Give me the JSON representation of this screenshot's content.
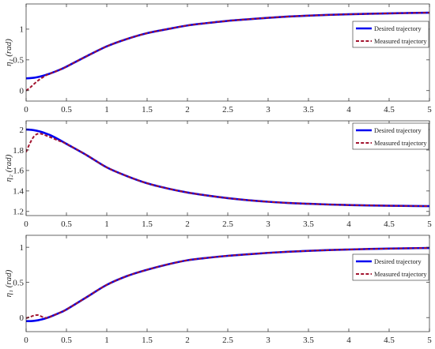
{
  "chart_data": [
    {
      "type": "line",
      "ylabel": "η₁ (rad)",
      "xlim": [
        0,
        5
      ],
      "ylim": [
        -0.17,
        1.41
      ],
      "grid": false,
      "legend": "top-right",
      "xtick_labels": [
        "0",
        "0.5",
        "1",
        "1.5",
        "2",
        "2.5",
        "3",
        "3.5",
        "4",
        "4.5",
        "5"
      ],
      "ytick_labels": [
        "0",
        "0.5",
        "1"
      ],
      "x": [
        0,
        0.05,
        0.1,
        0.15,
        0.2,
        0.25,
        0.3,
        0.4,
        0.5,
        0.75,
        1,
        1.25,
        1.5,
        1.75,
        2,
        2.25,
        2.5,
        2.75,
        3,
        3.25,
        3.5,
        3.75,
        4,
        4.25,
        4.5,
        4.75,
        5
      ],
      "series": [
        {
          "name": "Desired trajectory",
          "color": "#0000f0",
          "line_style": "solid",
          "values": [
            0.2,
            0.203,
            0.21,
            0.222,
            0.238,
            0.258,
            0.28,
            0.33,
            0.39,
            0.56,
            0.72,
            0.84,
            0.935,
            1.0,
            1.06,
            1.1,
            1.135,
            1.16,
            1.185,
            1.205,
            1.22,
            1.232,
            1.242,
            1.25,
            1.257,
            1.263,
            1.268
          ]
        },
        {
          "name": "Measured trajectory",
          "color": "#a2142f",
          "line_style": "dashed",
          "values": [
            0.0,
            0.05,
            0.11,
            0.165,
            0.21,
            0.25,
            0.278,
            0.33,
            0.39,
            0.56,
            0.72,
            0.84,
            0.935,
            1.0,
            1.06,
            1.1,
            1.135,
            1.16,
            1.185,
            1.205,
            1.22,
            1.232,
            1.242,
            1.25,
            1.257,
            1.263,
            1.268
          ]
        }
      ]
    },
    {
      "type": "line",
      "ylabel": "η₂ (rad)",
      "xlim": [
        0,
        5
      ],
      "ylim": [
        1.16,
        2.085
      ],
      "grid": false,
      "legend": "top-right",
      "xtick_labels": [
        "0",
        "0.5",
        "1",
        "1.5",
        "2",
        "2.5",
        "3",
        "3.5",
        "4",
        "4.5",
        "5"
      ],
      "ytick_labels": [
        "1.2",
        "1.4",
        "1.6",
        "1.8",
        "2"
      ],
      "x": [
        0,
        0.05,
        0.1,
        0.15,
        0.2,
        0.25,
        0.3,
        0.4,
        0.5,
        0.75,
        1,
        1.25,
        1.5,
        1.75,
        2,
        2.25,
        2.5,
        2.75,
        3,
        3.25,
        3.5,
        3.75,
        4,
        4.25,
        4.5,
        4.75,
        5
      ],
      "series": [
        {
          "name": "Desired trajectory",
          "color": "#0000f0",
          "line_style": "solid",
          "values": [
            2.0,
            1.998,
            1.993,
            1.985,
            1.974,
            1.96,
            1.945,
            1.905,
            1.86,
            1.75,
            1.63,
            1.545,
            1.475,
            1.425,
            1.385,
            1.355,
            1.33,
            1.31,
            1.295,
            1.283,
            1.275,
            1.268,
            1.263,
            1.259,
            1.256,
            1.254,
            1.252
          ]
        },
        {
          "name": "Measured trajectory",
          "color": "#a2142f",
          "line_style": "dashed",
          "values": [
            1.78,
            1.87,
            1.935,
            1.96,
            1.955,
            1.94,
            1.925,
            1.892,
            1.86,
            1.75,
            1.63,
            1.545,
            1.475,
            1.425,
            1.385,
            1.355,
            1.33,
            1.31,
            1.295,
            1.283,
            1.275,
            1.268,
            1.263,
            1.259,
            1.256,
            1.254,
            1.252
          ]
        }
      ]
    },
    {
      "type": "line",
      "ylabel": "η₁ (rad)",
      "xlim": [
        0,
        5
      ],
      "ylim": [
        -0.2,
        1.17
      ],
      "grid": false,
      "legend": "top-right",
      "xtick_labels": [
        "0",
        "0.5",
        "1",
        "1.5",
        "2",
        "2.5",
        "3",
        "3.5",
        "4",
        "4.5",
        "5"
      ],
      "ytick_labels": [
        "0",
        "0.5",
        "1"
      ],
      "x": [
        0,
        0.05,
        0.1,
        0.15,
        0.2,
        0.25,
        0.3,
        0.4,
        0.5,
        0.75,
        1,
        1.25,
        1.5,
        1.75,
        2,
        2.25,
        2.5,
        2.75,
        3,
        3.25,
        3.5,
        3.75,
        4,
        4.25,
        4.5,
        4.75,
        5
      ],
      "series": [
        {
          "name": "Desired trajectory",
          "color": "#0000f0",
          "line_style": "solid",
          "values": [
            -0.05,
            -0.05,
            -0.046,
            -0.038,
            -0.025,
            -0.008,
            0.012,
            0.06,
            0.115,
            0.29,
            0.465,
            0.59,
            0.68,
            0.755,
            0.815,
            0.85,
            0.878,
            0.9,
            0.92,
            0.936,
            0.949,
            0.96,
            0.968,
            0.975,
            0.981,
            0.986,
            0.99
          ]
        },
        {
          "name": "Measured trajectory",
          "color": "#a2142f",
          "line_style": "dashed",
          "values": [
            -0.01,
            0.01,
            0.03,
            0.035,
            0.01,
            -0.005,
            0.012,
            0.06,
            0.115,
            0.29,
            0.465,
            0.59,
            0.68,
            0.755,
            0.815,
            0.85,
            0.878,
            0.9,
            0.92,
            0.936,
            0.949,
            0.96,
            0.968,
            0.975,
            0.981,
            0.986,
            0.99
          ]
        }
      ]
    }
  ]
}
